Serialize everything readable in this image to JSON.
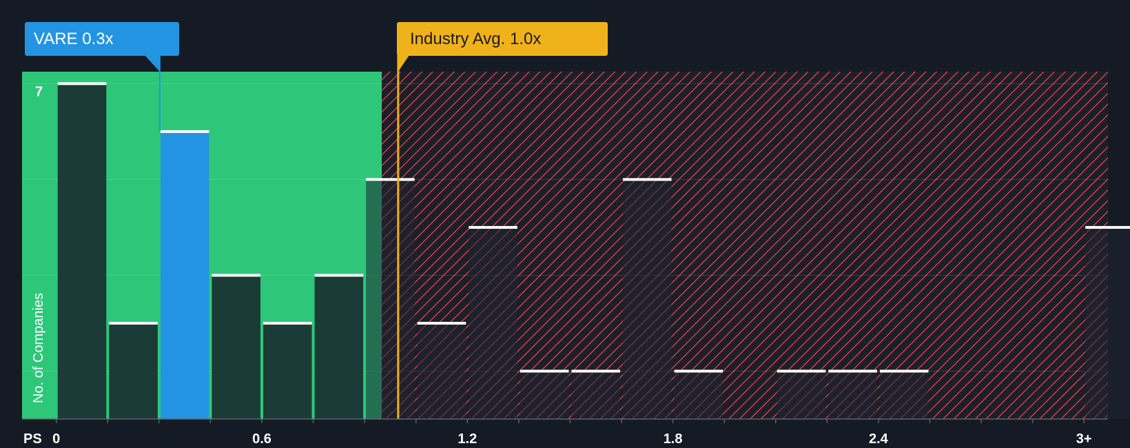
{
  "callouts": {
    "company": "VARE 0.3x",
    "industry": "Industry Avg. 1.0x"
  },
  "colors": {
    "background": "#151b24",
    "fair_zone": "#2ec77a",
    "over_zone_stripes": "#d93b3b",
    "company_bar": "#2394e2",
    "industry_line": "#efb21a",
    "bar_cap": "#ffffff"
  },
  "chart_data": {
    "type": "bar",
    "title": "",
    "xlabel": "PS",
    "ylabel": "No. of Companies",
    "bin_width": 0.15,
    "bins_start": [
      0.0,
      0.15,
      0.3,
      0.45,
      0.6,
      0.75,
      0.9,
      1.05,
      1.2,
      1.35,
      1.5,
      1.65,
      1.8,
      1.95,
      2.1,
      2.25,
      2.4,
      2.55,
      2.7,
      2.85,
      3.0
    ],
    "values": [
      7,
      2,
      6,
      3,
      2,
      3,
      5,
      2,
      4,
      1,
      1,
      5,
      1,
      0,
      1,
      1,
      1,
      0,
      0,
      0,
      4
    ],
    "highlight_bin_index": 2,
    "company_value": 0.3,
    "industry_avg": 1.0,
    "fair_zone_max": 0.95,
    "xlim": [
      -0.1,
      3.07
    ],
    "ylim": [
      0,
      7.25
    ],
    "x_tick_labels": [
      "0",
      "0.6",
      "1.2",
      "1.8",
      "2.4",
      "3+"
    ],
    "x_tick_values": [
      0,
      0.6,
      1.2,
      1.8,
      2.4,
      3.0
    ],
    "y_tick_labels": [
      "7"
    ],
    "y_tick_values": [
      7
    ],
    "gridlines": [
      1,
      3,
      5,
      7
    ]
  }
}
